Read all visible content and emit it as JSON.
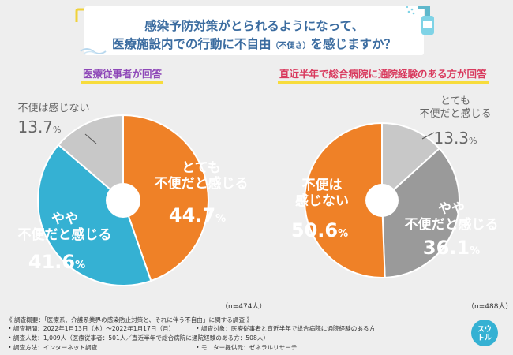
{
  "title": {
    "line1": "感染予防対策がとられるようになって、",
    "line2_main": "医療施設内での行動に不自由",
    "line2_small": "（不便さ）",
    "line2_end": "を感じますか？"
  },
  "panels": {
    "left": {
      "label": "医療従事者が回答",
      "n": "（n=474人）"
    },
    "right": {
      "label": "直近半年で総合病院に通院経験のある方が回答",
      "n": "（n=488人）"
    }
  },
  "chart_data": [
    {
      "type": "pie",
      "title": "医療従事者が回答",
      "donut_hole": true,
      "start_angle_deg": 0,
      "direction": "clockwise",
      "slices": [
        {
          "label_lines": [
            "とても",
            "不便だと感じる"
          ],
          "value": 44.7,
          "value_text": "44.7",
          "color": "#ef8127",
          "label_color": "#ffffff"
        },
        {
          "label_lines": [
            "やや",
            "不便だと感じる"
          ],
          "value": 41.6,
          "value_text": "41.6",
          "color": "#35b1d3",
          "label_color": "#ffffff"
        },
        {
          "label_lines": [
            "不便は感じない"
          ],
          "value": 13.7,
          "value_text": "13.7",
          "color": "#c8c8c8",
          "label_color": "#666666"
        }
      ],
      "n": "n=474人"
    },
    {
      "type": "pie",
      "title": "直近半年で総合病院に通院経験のある方が回答",
      "donut_hole": true,
      "start_angle_deg": 0,
      "direction": "clockwise",
      "slices": [
        {
          "label_lines": [
            "とても",
            "不便だと感じる"
          ],
          "value": 13.3,
          "value_text": "13.3",
          "color": "#c8c8c8",
          "label_color": "#666666"
        },
        {
          "label_lines": [
            "やや",
            "不便だと感じる"
          ],
          "value": 36.1,
          "value_text": "36.1",
          "color": "#9a9a9a",
          "label_color": "#ffffff"
        },
        {
          "label_lines": [
            "不便は",
            "感じない"
          ],
          "value": 50.6,
          "value_text": "50.6",
          "color": "#ef8127",
          "label_color": "#ffffff"
        }
      ],
      "n": "n=488人"
    }
  ],
  "pct_sign": "%",
  "footer": {
    "summary": "《 調査概要：「医療系、介護系業界の感染防止対策と、それに伴う不自由」に関する調査 》",
    "period": "• 調査期間：2022年1月13日（木）〜2022年1月17日（月）",
    "target": "• 調査対象：医療従事者と直近半年で総合病院に通院経験のある方",
    "count": "• 調査人数：1,009人（医療従事者：501人／直近半年で総合病院に通院経験のある方：508人）",
    "method": "• 調査方法：インターネット調査",
    "provider": "• モニター提供元：ゼネラルリサーチ"
  },
  "logo": {
    "line1": "スウ",
    "line2": "トル"
  },
  "colors": {
    "background": "#eeeeee",
    "title": "#3b6ca0",
    "orange": "#ef8127",
    "blue": "#35b1d3"
  }
}
